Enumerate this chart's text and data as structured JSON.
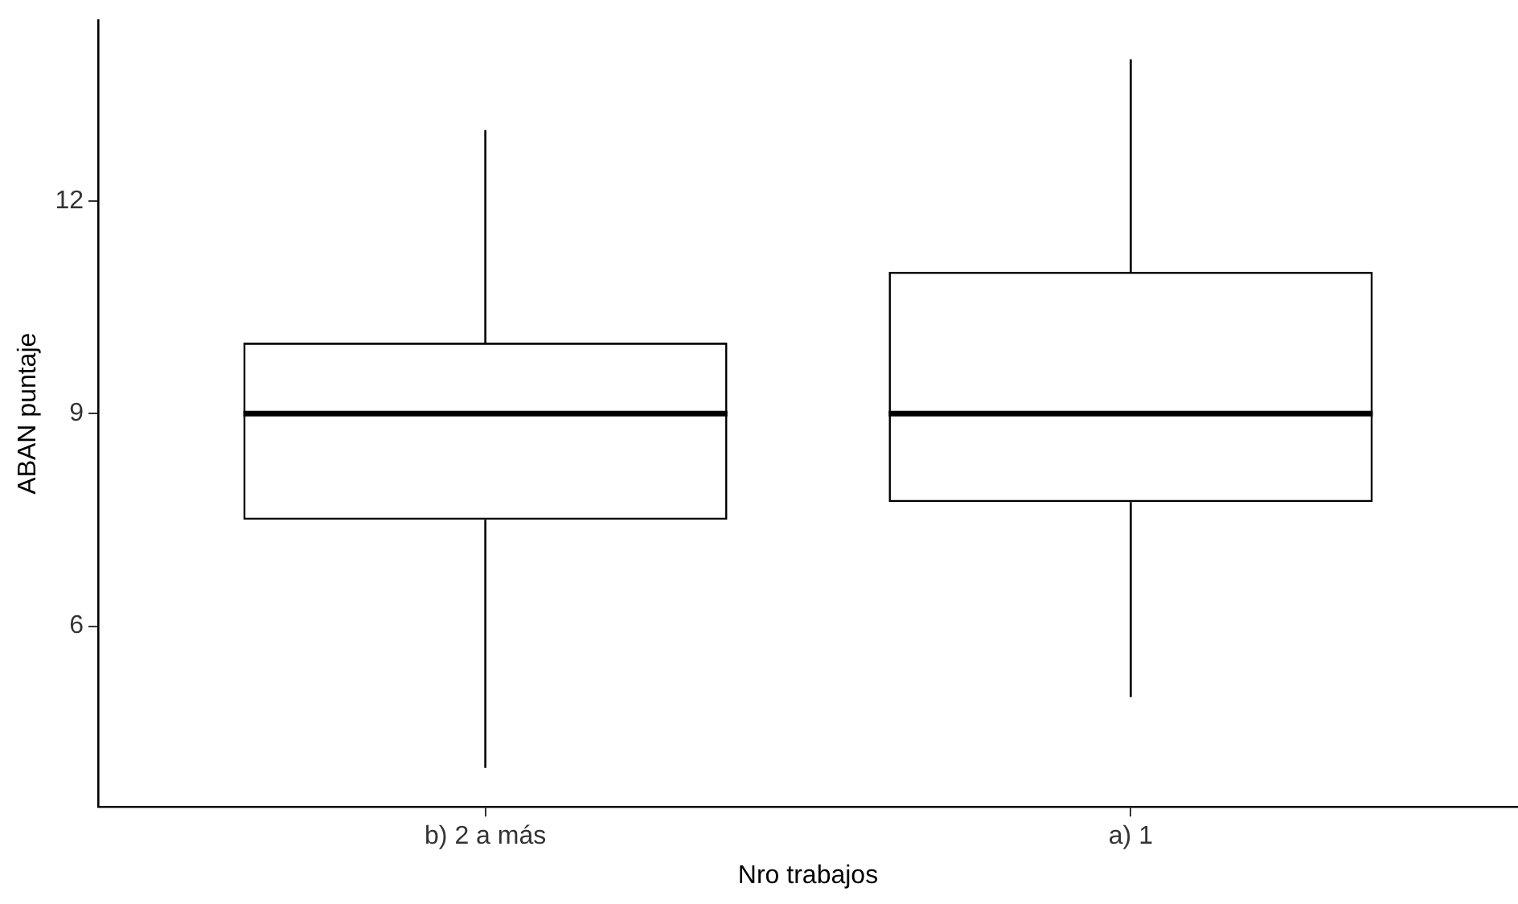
{
  "chart_data": {
    "type": "box",
    "xlabel": "Nro trabajos",
    "ylabel": "ABAN puntaje",
    "categories": [
      "b) 2 a más",
      "a) 1"
    ],
    "boxes": [
      {
        "low": 4,
        "q1": 7.5,
        "median": 9,
        "q3": 10,
        "high": 13
      },
      {
        "low": 5,
        "q1": 7.75,
        "median": 9,
        "q3": 11,
        "high": 14
      }
    ],
    "ylim": [
      3.45,
      14.55
    ],
    "yticks": [
      6,
      9,
      12
    ],
    "grid": false,
    "legend": false
  }
}
